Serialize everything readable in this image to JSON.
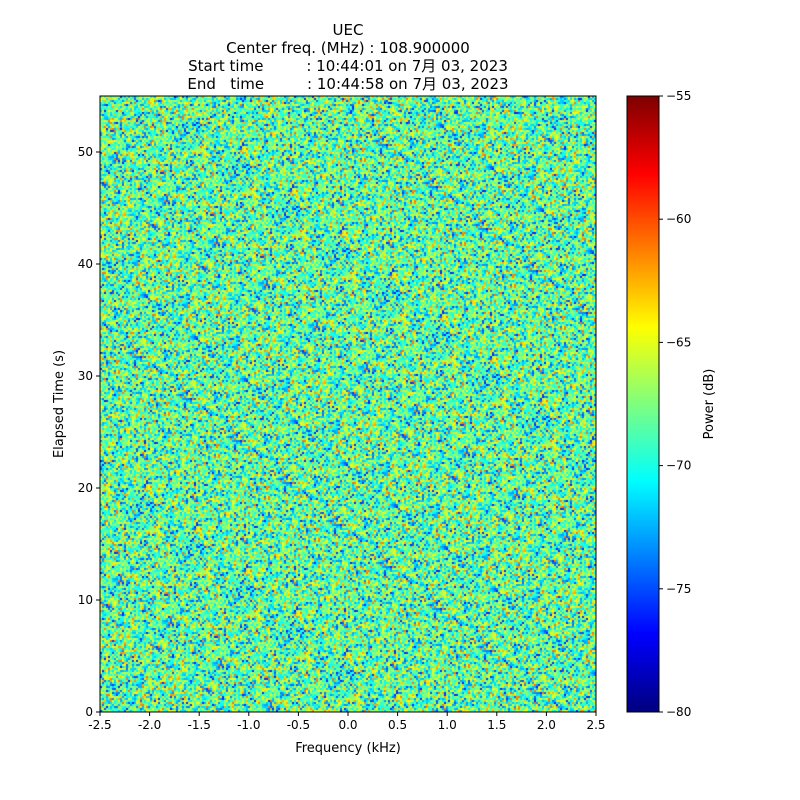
{
  "chart_data": {
    "type": "heatmap",
    "title_lines": [
      "UEC",
      "Center freq. (MHz) : 108.900000",
      "Start time         : 10:44:01 on 7月 03, 2023",
      "End   time         : 10:44:58 on 7月 03, 2023"
    ],
    "xlabel": "Frequency (kHz)",
    "ylabel": "Elapsed Time (s)",
    "xlim": [
      -2.5,
      2.5
    ],
    "ylim": [
      0,
      55
    ],
    "xticks": [
      -2.5,
      -2.0,
      -1.5,
      -1.0,
      -0.5,
      0.0,
      0.5,
      1.0,
      1.5,
      2.0,
      2.5
    ],
    "xtick_labels": [
      "-2.5",
      "-2.0",
      "-1.5",
      "-1.0",
      "-0.5",
      "0.0",
      "0.5",
      "1.0",
      "1.5",
      "2.0",
      "2.5"
    ],
    "yticks": [
      0,
      10,
      20,
      30,
      40,
      50
    ],
    "ytick_labels": [
      "0",
      "10",
      "20",
      "30",
      "40",
      "50"
    ],
    "colorbar": {
      "label": "Power (dB)",
      "range": [
        -80,
        -55
      ],
      "ticks": [
        -80,
        -75,
        -70,
        -65,
        -60,
        -55
      ],
      "tick_labels": [
        "−80",
        "−75",
        "−70",
        "−65",
        "−60",
        "−55"
      ],
      "colormap": "jet"
    },
    "z_summary": {
      "mean_db": -68.5,
      "std_db": 3.5,
      "min_db": -76,
      "max_db": -61,
      "pattern": "broadband noise"
    }
  }
}
